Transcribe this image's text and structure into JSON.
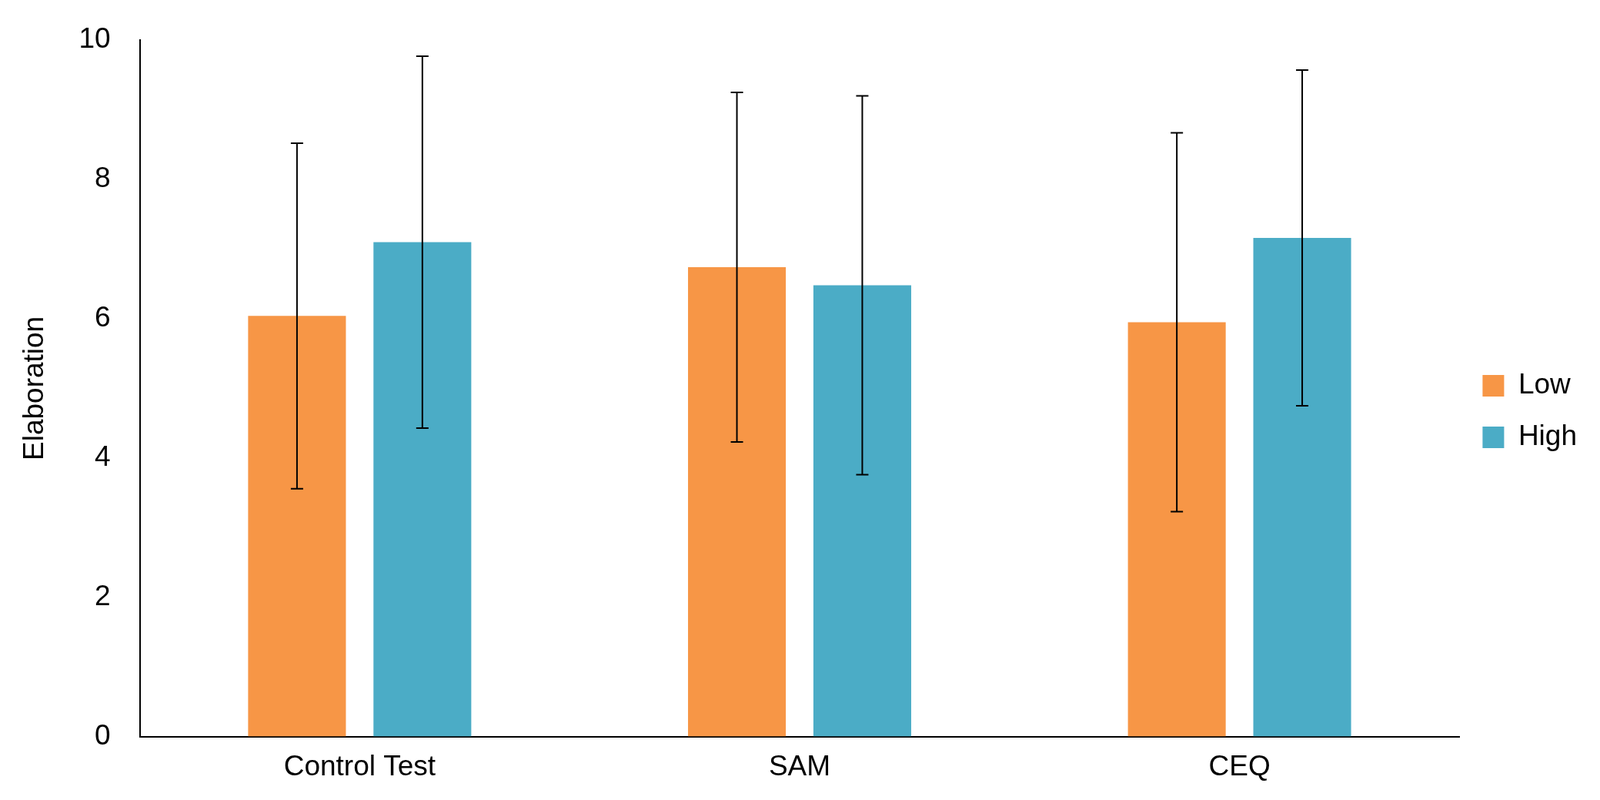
{
  "chart_data": {
    "type": "bar",
    "y_label": "Elaboration",
    "categories": [
      "Control Test",
      "SAM",
      "CEQ"
    ],
    "series": [
      {
        "name": "Low",
        "color": "#F79646",
        "values": [
          6.04,
          6.74,
          5.95
        ],
        "errors": [
          2.48,
          2.51,
          2.72
        ]
      },
      {
        "name": "High",
        "color": "#4BACC6",
        "values": [
          7.1,
          6.48,
          7.16
        ],
        "errors": [
          2.67,
          2.72,
          2.41
        ]
      }
    ],
    "ylim": [
      0,
      10
    ],
    "yticks": [
      0,
      2,
      4,
      6,
      8,
      10
    ],
    "grid": false,
    "legend": "right"
  }
}
